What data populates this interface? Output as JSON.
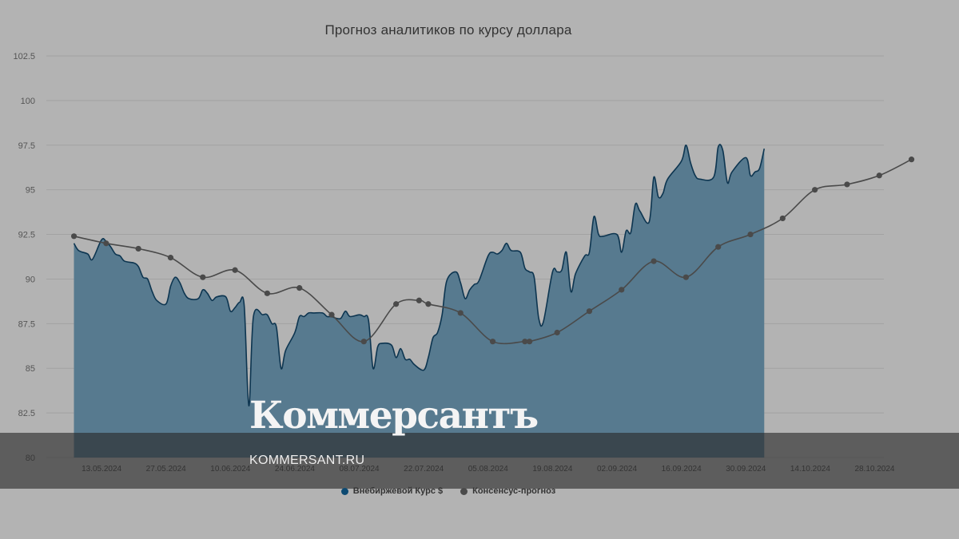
{
  "page": {
    "brand_name": "Коммерсантъ",
    "brand_site": "KOMMERSANT.RU"
  },
  "colors": {
    "area_fill": "#577a8f",
    "area_line": "#0d3550",
    "forecast_line": "#4a4a4a",
    "grid": "#a2a2a2",
    "background": "#b3b3b3"
  },
  "chart_data": {
    "type": "area",
    "title": "Прогноз аналитиков по курсу доллара",
    "xlabel": "",
    "ylabel": "",
    "ylim": [
      80,
      102.5
    ],
    "xlim": [
      "2024-05-01",
      "2024-10-30"
    ],
    "y_ticks": [
      "80",
      "82.5",
      "85",
      "87.5",
      "90",
      "92.5",
      "95",
      "97.5",
      "100",
      "102.5"
    ],
    "x_ticks": [
      {
        "date": "2024-05-13",
        "label": "13.05.2024"
      },
      {
        "date": "2024-05-27",
        "label": "27.05.2024"
      },
      {
        "date": "2024-06-10",
        "label": "10.06.2024"
      },
      {
        "date": "2024-06-24",
        "label": "24.06.2024"
      },
      {
        "date": "2024-07-08",
        "label": "08.07.2024"
      },
      {
        "date": "2024-07-22",
        "label": "22.07.2024"
      },
      {
        "date": "2024-08-05",
        "label": "05.08.2024"
      },
      {
        "date": "2024-08-19",
        "label": "19.08.2024"
      },
      {
        "date": "2024-09-02",
        "label": "02.09.2024"
      },
      {
        "date": "2024-09-16",
        "label": "16.09.2024"
      },
      {
        "date": "2024-09-30",
        "label": "30.09.2024"
      },
      {
        "date": "2024-10-14",
        "label": "14.10.2024"
      },
      {
        "date": "2024-10-28",
        "label": "28.10.2024"
      }
    ],
    "legend_position": "bottom-center",
    "grid": true,
    "series": [
      {
        "name": "Внебиржевой Курс $",
        "type": "area",
        "points": [
          [
            "2024-05-07",
            92.0
          ],
          [
            "2024-05-08",
            91.6
          ],
          [
            "2024-05-10",
            91.4
          ],
          [
            "2024-05-11",
            91.1
          ],
          [
            "2024-05-13",
            92.2
          ],
          [
            "2024-05-14",
            92.1
          ],
          [
            "2024-05-15",
            91.8
          ],
          [
            "2024-05-16",
            91.4
          ],
          [
            "2024-05-17",
            91.3
          ],
          [
            "2024-05-18",
            91.0
          ],
          [
            "2024-05-20",
            90.9
          ],
          [
            "2024-05-21",
            90.7
          ],
          [
            "2024-05-22",
            90.1
          ],
          [
            "2024-05-23",
            90.0
          ],
          [
            "2024-05-24",
            89.3
          ],
          [
            "2024-05-25",
            88.8
          ],
          [
            "2024-05-27",
            88.6
          ],
          [
            "2024-05-28",
            89.6
          ],
          [
            "2024-05-29",
            90.1
          ],
          [
            "2024-05-30",
            89.8
          ],
          [
            "2024-05-31",
            89.2
          ],
          [
            "2024-06-01",
            88.9
          ],
          [
            "2024-06-03",
            88.9
          ],
          [
            "2024-06-04",
            89.4
          ],
          [
            "2024-06-05",
            89.2
          ],
          [
            "2024-06-06",
            88.8
          ],
          [
            "2024-06-07",
            89.0
          ],
          [
            "2024-06-09",
            89.0
          ],
          [
            "2024-06-10",
            88.2
          ],
          [
            "2024-06-11",
            88.4
          ],
          [
            "2024-06-12",
            88.7
          ],
          [
            "2024-06-13",
            88.5
          ],
          [
            "2024-06-14",
            82.9
          ],
          [
            "2024-06-15",
            87.9
          ],
          [
            "2024-06-17",
            88.0
          ],
          [
            "2024-06-18",
            88.0
          ],
          [
            "2024-06-19",
            87.5
          ],
          [
            "2024-06-20",
            87.3
          ],
          [
            "2024-06-21",
            85.0
          ],
          [
            "2024-06-22",
            86.0
          ],
          [
            "2024-06-24",
            87.0
          ],
          [
            "2024-06-25",
            87.9
          ],
          [
            "2024-06-26",
            87.9
          ],
          [
            "2024-06-27",
            88.1
          ],
          [
            "2024-06-28",
            88.1
          ],
          [
            "2024-06-30",
            88.1
          ],
          [
            "2024-07-01",
            87.9
          ],
          [
            "2024-07-02",
            87.9
          ],
          [
            "2024-07-03",
            87.8
          ],
          [
            "2024-07-04",
            87.8
          ],
          [
            "2024-07-05",
            88.2
          ],
          [
            "2024-07-06",
            87.9
          ],
          [
            "2024-07-08",
            88.0
          ],
          [
            "2024-07-09",
            87.9
          ],
          [
            "2024-07-10",
            87.7
          ],
          [
            "2024-07-11",
            85.0
          ],
          [
            "2024-07-12",
            86.2
          ],
          [
            "2024-07-13",
            86.4
          ],
          [
            "2024-07-15",
            86.3
          ],
          [
            "2024-07-16",
            85.6
          ],
          [
            "2024-07-17",
            86.1
          ],
          [
            "2024-07-18",
            85.5
          ],
          [
            "2024-07-19",
            85.5
          ],
          [
            "2024-07-20",
            85.2
          ],
          [
            "2024-07-22",
            84.9
          ],
          [
            "2024-07-23",
            85.6
          ],
          [
            "2024-07-24",
            86.7
          ],
          [
            "2024-07-25",
            87.0
          ],
          [
            "2024-07-26",
            88.0
          ],
          [
            "2024-07-27",
            89.9
          ],
          [
            "2024-07-29",
            90.4
          ],
          [
            "2024-07-30",
            89.8
          ],
          [
            "2024-07-31",
            88.9
          ],
          [
            "2024-08-01",
            89.4
          ],
          [
            "2024-08-02",
            89.7
          ],
          [
            "2024-08-03",
            89.9
          ],
          [
            "2024-08-05",
            91.3
          ],
          [
            "2024-08-06",
            91.5
          ],
          [
            "2024-08-07",
            91.4
          ],
          [
            "2024-08-08",
            91.6
          ],
          [
            "2024-08-09",
            92.0
          ],
          [
            "2024-08-10",
            91.6
          ],
          [
            "2024-08-12",
            91.5
          ],
          [
            "2024-08-13",
            90.6
          ],
          [
            "2024-08-14",
            90.4
          ],
          [
            "2024-08-15",
            90.1
          ],
          [
            "2024-08-16",
            87.8
          ],
          [
            "2024-08-17",
            87.6
          ],
          [
            "2024-08-19",
            90.4
          ],
          [
            "2024-08-20",
            90.4
          ],
          [
            "2024-08-21",
            90.5
          ],
          [
            "2024-08-22",
            91.5
          ],
          [
            "2024-08-23",
            89.3
          ],
          [
            "2024-08-24",
            90.3
          ],
          [
            "2024-08-26",
            91.3
          ],
          [
            "2024-08-27",
            91.5
          ],
          [
            "2024-08-28",
            93.5
          ],
          [
            "2024-08-29",
            92.5
          ],
          [
            "2024-08-30",
            92.4
          ],
          [
            "2024-09-02",
            92.5
          ],
          [
            "2024-09-03",
            91.5
          ],
          [
            "2024-09-04",
            92.7
          ],
          [
            "2024-09-05",
            92.6
          ],
          [
            "2024-09-06",
            94.2
          ],
          [
            "2024-09-07",
            93.8
          ],
          [
            "2024-09-09",
            93.2
          ],
          [
            "2024-09-10",
            95.7
          ],
          [
            "2024-09-11",
            94.6
          ],
          [
            "2024-09-12",
            94.8
          ],
          [
            "2024-09-13",
            95.6
          ],
          [
            "2024-09-16",
            96.6
          ],
          [
            "2024-09-17",
            97.5
          ],
          [
            "2024-09-18",
            96.5
          ],
          [
            "2024-09-19",
            95.8
          ],
          [
            "2024-09-20",
            95.6
          ],
          [
            "2024-09-23",
            95.7
          ],
          [
            "2024-09-24",
            97.4
          ],
          [
            "2024-09-25",
            97.2
          ],
          [
            "2024-09-26",
            95.4
          ],
          [
            "2024-09-27",
            96.0
          ],
          [
            "2024-09-30",
            96.8
          ],
          [
            "2024-10-01",
            95.8
          ],
          [
            "2024-10-02",
            96.0
          ],
          [
            "2024-10-03",
            96.2
          ],
          [
            "2024-10-04",
            97.3
          ]
        ]
      },
      {
        "name": "Консенсус-прогноз",
        "type": "line",
        "points": [
          [
            "2024-05-07",
            92.4
          ],
          [
            "2024-05-14",
            92.0
          ],
          [
            "2024-05-21",
            91.7
          ],
          [
            "2024-05-28",
            91.2
          ],
          [
            "2024-06-04",
            90.1
          ],
          [
            "2024-06-11",
            90.5
          ],
          [
            "2024-06-18",
            89.2
          ],
          [
            "2024-06-25",
            89.5
          ],
          [
            "2024-07-02",
            88.0
          ],
          [
            "2024-07-09",
            86.5
          ],
          [
            "2024-07-16",
            88.6
          ],
          [
            "2024-07-21",
            88.8
          ],
          [
            "2024-07-23",
            88.6
          ],
          [
            "2024-07-30",
            88.1
          ],
          [
            "2024-08-06",
            86.5
          ],
          [
            "2024-08-13",
            86.5
          ],
          [
            "2024-08-14",
            86.5
          ],
          [
            "2024-08-20",
            87.0
          ],
          [
            "2024-08-27",
            88.2
          ],
          [
            "2024-09-03",
            89.4
          ],
          [
            "2024-09-10",
            91.0
          ],
          [
            "2024-09-17",
            90.1
          ],
          [
            "2024-09-24",
            91.8
          ],
          [
            "2024-10-01",
            92.5
          ],
          [
            "2024-10-08",
            93.4
          ],
          [
            "2024-10-15",
            95.0
          ],
          [
            "2024-10-22",
            95.3
          ],
          [
            "2024-10-29",
            95.8
          ],
          [
            "2024-11-05",
            96.7
          ]
        ]
      }
    ]
  }
}
